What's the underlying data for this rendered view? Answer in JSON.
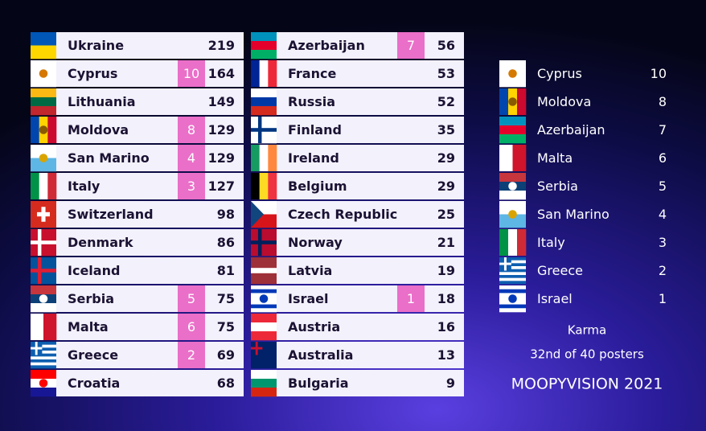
{
  "scoreboard": {
    "rows": [
      {
        "country": "Ukraine",
        "total": 219
      },
      {
        "country": "Cyprus",
        "points": 10,
        "total": 164
      },
      {
        "country": "Lithuania",
        "total": 149
      },
      {
        "country": "Moldova",
        "points": 8,
        "total": 129
      },
      {
        "country": "San Marino",
        "points": 4,
        "total": 129
      },
      {
        "country": "Italy",
        "points": 3,
        "total": 127
      },
      {
        "country": "Switzerland",
        "total": 98
      },
      {
        "country": "Denmark",
        "total": 86
      },
      {
        "country": "Iceland",
        "total": 81
      },
      {
        "country": "Serbia",
        "points": 5,
        "total": 75
      },
      {
        "country": "Malta",
        "points": 6,
        "total": 75
      },
      {
        "country": "Greece",
        "points": 2,
        "total": 69
      },
      {
        "country": "Croatia",
        "total": 68
      },
      {
        "country": "Azerbaijan",
        "points": 7,
        "total": 56
      },
      {
        "country": "France",
        "total": 53
      },
      {
        "country": "Russia",
        "total": 52
      },
      {
        "country": "Finland",
        "total": 35
      },
      {
        "country": "Ireland",
        "total": 29
      },
      {
        "country": "Belgium",
        "total": 29
      },
      {
        "country": "Czech Republic",
        "total": 25
      },
      {
        "country": "Norway",
        "total": 21
      },
      {
        "country": "Latvia",
        "total": 19
      },
      {
        "country": "Israel",
        "points": 1,
        "total": 18
      },
      {
        "country": "Austria",
        "total": 16
      },
      {
        "country": "Australia",
        "total": 13
      },
      {
        "country": "Bulgaria",
        "total": 9
      }
    ]
  },
  "received": {
    "rows": [
      {
        "country": "Cyprus",
        "points": 10
      },
      {
        "country": "Moldova",
        "points": 8
      },
      {
        "country": "Azerbaijan",
        "points": 7
      },
      {
        "country": "Malta",
        "points": 6
      },
      {
        "country": "Serbia",
        "points": 5
      },
      {
        "country": "San Marino",
        "points": 4
      },
      {
        "country": "Italy",
        "points": 3
      },
      {
        "country": "Greece",
        "points": 2
      },
      {
        "country": "Israel",
        "points": 1
      }
    ]
  },
  "footer": {
    "label": "Karma",
    "rank": "32nd of 40 posters",
    "brand": "MOOPYVISION 2021"
  }
}
